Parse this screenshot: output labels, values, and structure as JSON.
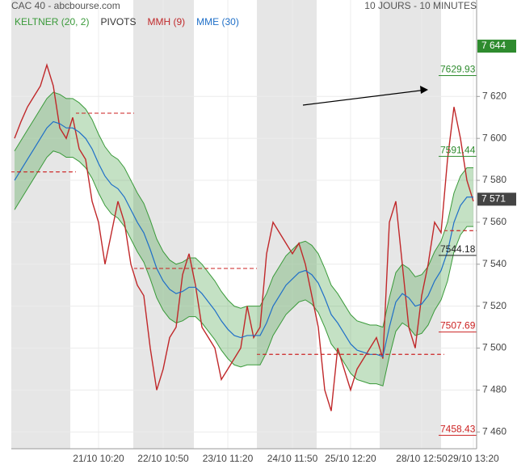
{
  "chart_data": {
    "type": "line",
    "title": "CAC 40 - abcbourse.com",
    "subtitle": "10 JOURS - 10 MINUTES",
    "categories": [
      null,
      null,
      null,
      null,
      null,
      null,
      null,
      null,
      null,
      null,
      null,
      null,
      null,
      "21/10 10:20",
      null,
      null,
      null,
      null,
      null,
      null,
      null,
      null,
      null,
      "22/10 10:50",
      null,
      null,
      null,
      null,
      null,
      null,
      null,
      null,
      null,
      "23/10 11:20",
      null,
      null,
      null,
      null,
      null,
      null,
      null,
      null,
      null,
      "24/10 11:50",
      null,
      null,
      null,
      null,
      null,
      null,
      null,
      null,
      "25/10 12:20",
      null,
      null,
      null,
      null,
      null,
      null,
      null,
      null,
      null,
      null,
      "28/10 12:50",
      null,
      null,
      null,
      null,
      null,
      null,
      null,
      "29/10 13:20"
    ],
    "keltner": {
      "name": "KELTNER (20, 2)",
      "color": "#3a9a3a",
      "upper": [
        7594,
        7599,
        7604,
        7609,
        7614,
        7619,
        7622,
        7621,
        7619,
        7619,
        7617,
        7614,
        7609,
        7602,
        7596,
        7592,
        7590,
        7586,
        7580,
        7574,
        7569,
        7561,
        7552,
        7546,
        7542,
        7540,
        7541,
        7543,
        7543,
        7540,
        7536,
        7532,
        7527,
        7523,
        7520,
        7519,
        7520,
        7520,
        7520,
        7526,
        7534,
        7539,
        7544,
        7547,
        7550,
        7551,
        7549,
        7545,
        7538,
        7530,
        7526,
        7521,
        7516,
        7513,
        7512,
        7511,
        7511,
        7510,
        7524,
        7536,
        7540,
        7538,
        7534,
        7535,
        7539,
        7546,
        7551,
        7560,
        7574,
        7582,
        7586,
        7586
      ],
      "lower": [
        7566,
        7571,
        7576,
        7581,
        7586,
        7591,
        7594,
        7593,
        7591,
        7591,
        7589,
        7586,
        7581,
        7574,
        7568,
        7564,
        7562,
        7558,
        7552,
        7546,
        7541,
        7533,
        7524,
        7518,
        7514,
        7512,
        7513,
        7515,
        7515,
        7512,
        7508,
        7504,
        7499,
        7495,
        7492,
        7491,
        7492,
        7492,
        7492,
        7498,
        7506,
        7511,
        7516,
        7519,
        7522,
        7523,
        7521,
        7517,
        7510,
        7502,
        7498,
        7493,
        7488,
        7485,
        7484,
        7483,
        7483,
        7482,
        7496,
        7508,
        7512,
        7510,
        7506,
        7507,
        7511,
        7518,
        7523,
        7532,
        7546,
        7554,
        7558,
        7558
      ]
    },
    "pivots": {
      "name": "PIVOTS",
      "color": "#cc2222",
      "values": [
        7584,
        7584,
        7584,
        7584,
        7584,
        7584,
        7584,
        7584,
        7584,
        7584,
        7612,
        7612,
        7612,
        7612,
        7612,
        7612,
        7612,
        7612,
        7612,
        7538,
        7538,
        7538,
        7538,
        7538,
        7538,
        7538,
        7538,
        7538,
        7538,
        7538,
        7538,
        7538,
        7538,
        7538,
        7538,
        7538,
        7538,
        7538,
        7497,
        7497,
        7497,
        7497,
        7497,
        7497,
        7497,
        7497,
        7497,
        7497,
        7497,
        7497,
        7497,
        7497,
        7497,
        7497,
        7497,
        7497,
        7497,
        7497,
        7497,
        7497,
        7497,
        7497,
        7497,
        7497,
        7497,
        7497,
        7497,
        7556,
        7556,
        7556,
        7556,
        7556
      ]
    },
    "series": [
      {
        "name": "MMH (9)",
        "color": "#c0282a",
        "values": [
          7600,
          7608,
          7615,
          7620,
          7625,
          7635,
          7625,
          7605,
          7600,
          7610,
          7595,
          7590,
          7570,
          7560,
          7540,
          7555,
          7570,
          7560,
          7540,
          7530,
          7525,
          7500,
          7480,
          7490,
          7505,
          7510,
          7535,
          7545,
          7530,
          7510,
          7505,
          7500,
          7485,
          7490,
          7495,
          7500,
          7520,
          7505,
          7510,
          7545,
          7560,
          7555,
          7550,
          7545,
          7550,
          7540,
          7525,
          7510,
          7480,
          7470,
          7500,
          7490,
          7480,
          7490,
          7495,
          7500,
          7505,
          7495,
          7560,
          7570,
          7540,
          7510,
          7500,
          7525,
          7540,
          7560,
          7555,
          7590,
          7615,
          7600,
          7580,
          7570
        ]
      },
      {
        "name": "MME (30)",
        "color": "#1f6fc8",
        "values": [
          7580,
          7585,
          7590,
          7595,
          7600,
          7605,
          7608,
          7607,
          7605,
          7605,
          7603,
          7600,
          7595,
          7588,
          7582,
          7578,
          7576,
          7572,
          7566,
          7560,
          7555,
          7547,
          7538,
          7532,
          7528,
          7526,
          7527,
          7529,
          7529,
          7526,
          7522,
          7518,
          7513,
          7509,
          7506,
          7505,
          7506,
          7506,
          7506,
          7512,
          7520,
          7525,
          7530,
          7533,
          7536,
          7537,
          7535,
          7531,
          7524,
          7516,
          7512,
          7507,
          7502,
          7499,
          7498,
          7497,
          7497,
          7496,
          7510,
          7522,
          7526,
          7524,
          7520,
          7521,
          7525,
          7532,
          7537,
          7546,
          7560,
          7568,
          7572,
          7572
        ]
      }
    ],
    "levels": [
      {
        "value": 7629.93,
        "color": "#2e8b2e"
      },
      {
        "value": 7591.44,
        "color": "#2e8b2e"
      },
      {
        "value": 7544.18,
        "color": "#222222"
      },
      {
        "value": 7507.69,
        "color": "#cc2222"
      },
      {
        "value": 7458.43,
        "color": "#cc2222"
      }
    ],
    "price_markers": [
      {
        "value": 7644,
        "label": "7 644",
        "color": "#2e8b2e"
      },
      {
        "value": 7571,
        "label": "7 571",
        "color": "#444444"
      }
    ],
    "ylim": [
      7452,
      7666
    ],
    "yticks": [
      {
        "value": 7460,
        "label": "7 460"
      },
      {
        "value": 7480,
        "label": "7 480"
      },
      {
        "value": 7500,
        "label": "7 500"
      },
      {
        "value": 7520,
        "label": "7 520"
      },
      {
        "value": 7540,
        "label": "7 540"
      },
      {
        "value": 7560,
        "label": "7 560"
      },
      {
        "value": 7580,
        "label": "7 580"
      },
      {
        "value": 7600,
        "label": "7 600"
      },
      {
        "value": 7620,
        "label": "7 620"
      }
    ],
    "grid": true
  }
}
